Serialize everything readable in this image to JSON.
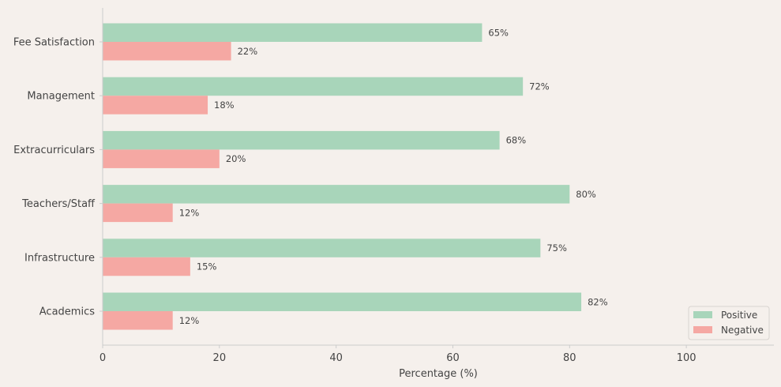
{
  "chart_data": {
    "type": "bar",
    "orientation": "horizontal",
    "categories": [
      "Fee Satisfaction",
      "Management",
      "Extracurriculars",
      "Teachers/Staff",
      "Infrastructure",
      "Academics"
    ],
    "series": [
      {
        "name": "Positive",
        "values": [
          65,
          72,
          68,
          80,
          75,
          82
        ],
        "color": "#a8d5ba"
      },
      {
        "name": "Negative",
        "values": [
          22,
          18,
          20,
          12,
          15,
          12
        ],
        "color": "#f5a8a3"
      }
    ],
    "value_suffix": "%",
    "xlabel": "Percentage (%)",
    "ylabel": "",
    "xlim": [
      0,
      115
    ],
    "xticks": [
      0,
      20,
      40,
      60,
      80,
      100
    ],
    "grid": false,
    "legend_position": "bottom-right"
  }
}
